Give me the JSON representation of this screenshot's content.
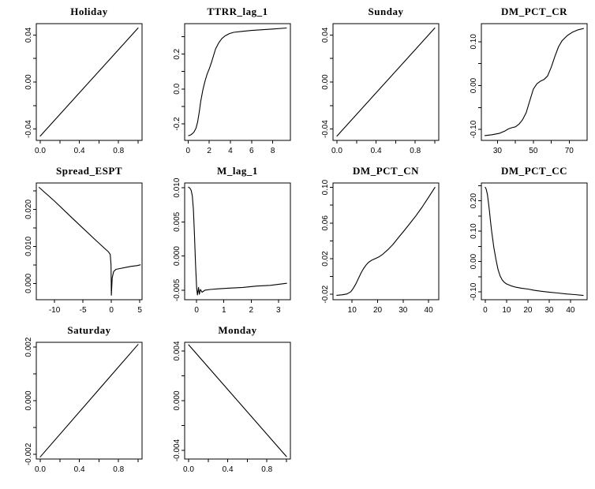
{
  "page": {
    "background": "#ffffff",
    "text_color": "#000000",
    "line_color": "#000000"
  },
  "chart_data": [
    {
      "type": "line",
      "title": "Holiday",
      "xlim": [
        -0.04,
        1.04
      ],
      "ylim": [
        -0.0497,
        0.0497
      ],
      "xticks": [
        {
          "v": 0.0,
          "label": "0.0"
        },
        {
          "v": 0.2,
          "label": ""
        },
        {
          "v": 0.4,
          "label": "0.4"
        },
        {
          "v": 0.6,
          "label": ""
        },
        {
          "v": 0.8,
          "label": "0.8"
        },
        {
          "v": 1.0,
          "label": ""
        }
      ],
      "yticks": [
        {
          "v": -0.04,
          "label": "-0.04"
        },
        {
          "v": -0.02,
          "label": ""
        },
        {
          "v": 0.0,
          "label": "0.00"
        },
        {
          "v": 0.02,
          "label": ""
        },
        {
          "v": 0.04,
          "label": "0.04"
        }
      ],
      "x": [
        0,
        1
      ],
      "y": [
        -0.046,
        0.046
      ]
    },
    {
      "type": "line",
      "title": "TTRR_lag_1",
      "xlim": [
        -0.32,
        9.67
      ],
      "ylim": [
        -0.295,
        0.375
      ],
      "xticks": [
        {
          "v": 0,
          "label": "0"
        },
        {
          "v": 2,
          "label": "2"
        },
        {
          "v": 4,
          "label": "4"
        },
        {
          "v": 6,
          "label": "6"
        },
        {
          "v": 8,
          "label": "8"
        }
      ],
      "yticks": [
        {
          "v": -0.2,
          "label": "-0.2"
        },
        {
          "v": -0.1,
          "label": ""
        },
        {
          "v": 0.0,
          "label": "0.0"
        },
        {
          "v": 0.1,
          "label": ""
        },
        {
          "v": 0.2,
          "label": "0.2"
        },
        {
          "v": 0.3,
          "label": ""
        }
      ],
      "x": [
        0.05,
        0.3,
        0.55,
        0.75,
        0.9,
        1.05,
        1.2,
        1.4,
        1.6,
        1.8,
        2.0,
        2.2,
        2.4,
        2.6,
        2.9,
        3.2,
        3.5,
        3.9,
        4.3,
        5,
        6,
        7,
        8,
        9.3
      ],
      "y": [
        -0.268,
        -0.262,
        -0.248,
        -0.225,
        -0.19,
        -0.135,
        -0.07,
        -0.005,
        0.045,
        0.085,
        0.115,
        0.15,
        0.19,
        0.23,
        0.265,
        0.29,
        0.305,
        0.318,
        0.325,
        0.33,
        0.336,
        0.34,
        0.344,
        0.35
      ]
    },
    {
      "type": "line",
      "title": "Sunday",
      "xlim": [
        -0.04,
        1.04
      ],
      "ylim": [
        -0.0497,
        0.0497
      ],
      "xticks": [
        {
          "v": 0.0,
          "label": "0.0"
        },
        {
          "v": 0.2,
          "label": ""
        },
        {
          "v": 0.4,
          "label": "0.4"
        },
        {
          "v": 0.6,
          "label": ""
        },
        {
          "v": 0.8,
          "label": "0.8"
        },
        {
          "v": 1.0,
          "label": ""
        }
      ],
      "yticks": [
        {
          "v": -0.04,
          "label": "-0.04"
        },
        {
          "v": -0.02,
          "label": ""
        },
        {
          "v": 0.0,
          "label": "0.00"
        },
        {
          "v": 0.02,
          "label": ""
        },
        {
          "v": 0.04,
          "label": "0.04"
        }
      ],
      "x": [
        0,
        1
      ],
      "y": [
        -0.046,
        0.046
      ]
    },
    {
      "type": "line",
      "title": "DM_PCT_CR",
      "xlim": [
        21,
        80
      ],
      "ylim": [
        -0.125,
        0.141
      ],
      "xticks": [
        {
          "v": 30,
          "label": "30"
        },
        {
          "v": 40,
          "label": ""
        },
        {
          "v": 50,
          "label": "50"
        },
        {
          "v": 60,
          "label": ""
        },
        {
          "v": 70,
          "label": "70"
        }
      ],
      "yticks": [
        {
          "v": -0.1,
          "label": "-0.10"
        },
        {
          "v": -0.05,
          "label": ""
        },
        {
          "v": 0.0,
          "label": "0.00"
        },
        {
          "v": 0.05,
          "label": ""
        },
        {
          "v": 0.1,
          "label": "0.10"
        }
      ],
      "x": [
        23,
        27,
        31,
        34,
        36,
        38,
        40,
        42,
        44,
        46,
        48,
        50,
        52,
        54,
        56,
        58,
        60,
        62,
        64,
        66,
        69,
        72,
        75,
        78
      ],
      "y": [
        -0.114,
        -0.112,
        -0.109,
        -0.104,
        -0.099,
        -0.096,
        -0.094,
        -0.088,
        -0.078,
        -0.062,
        -0.035,
        -0.008,
        0.004,
        0.01,
        0.014,
        0.022,
        0.042,
        0.066,
        0.088,
        0.102,
        0.114,
        0.122,
        0.127,
        0.13
      ]
    },
    {
      "type": "line",
      "title": "Spread_ESPT",
      "xlim": [
        -13.2,
        5.4
      ],
      "ylim": [
        -0.0044,
        0.0271
      ],
      "xticks": [
        {
          "v": -10,
          "label": "-10"
        },
        {
          "v": -5,
          "label": "-5"
        },
        {
          "v": 0,
          "label": "0"
        },
        {
          "v": 5,
          "label": "5"
        }
      ],
      "yticks": [
        {
          "v": 0.0,
          "label": "0.000"
        },
        {
          "v": 0.005,
          "label": ""
        },
        {
          "v": 0.01,
          "label": "0.010"
        },
        {
          "v": 0.015,
          "label": ""
        },
        {
          "v": 0.02,
          "label": "0.020"
        },
        {
          "v": 0.025,
          "label": ""
        }
      ],
      "x": [
        -12.7,
        -10,
        -7,
        -5,
        -3,
        -2,
        -1,
        -0.5,
        -0.2,
        -0.05,
        0,
        0.15,
        0.4,
        0.8,
        1.5,
        2.5,
        3.5,
        4.5,
        5.1
      ],
      "y": [
        0.0259,
        0.0222,
        0.0178,
        0.0149,
        0.012,
        0.0106,
        0.0092,
        0.0085,
        0.0078,
        0.005,
        -0.0032,
        0.0015,
        0.0032,
        0.0038,
        0.004,
        0.0043,
        0.0046,
        0.0048,
        0.005
      ]
    },
    {
      "type": "line",
      "title": "M_lag_1",
      "xlim": [
        -0.44,
        3.44
      ],
      "ylim": [
        -0.0064,
        0.0107
      ],
      "xticks": [
        {
          "v": 0,
          "label": "0"
        },
        {
          "v": 1,
          "label": "1"
        },
        {
          "v": 2,
          "label": "2"
        },
        {
          "v": 3,
          "label": "3"
        }
      ],
      "yticks": [
        {
          "v": -0.005,
          "label": "-0.005"
        },
        {
          "v": 0.0,
          "label": "0.000"
        },
        {
          "v": 0.005,
          "label": "0.005"
        },
        {
          "v": 0.01,
          "label": "0.010"
        }
      ],
      "x": [
        -0.3,
        -0.27,
        -0.24,
        -0.2,
        -0.16,
        -0.12,
        -0.08,
        -0.04,
        0,
        0.03,
        0.07,
        0.1,
        0.14,
        0.2,
        0.3,
        0.5,
        0.8,
        1.2,
        1.7,
        2.2,
        2.7,
        3.1,
        3.3
      ],
      "y": [
        0.0101,
        0.01,
        0.0099,
        0.0096,
        0.0088,
        0.0068,
        0.0032,
        -0.0012,
        -0.0047,
        -0.0057,
        -0.0046,
        -0.0056,
        -0.0049,
        -0.0053,
        -0.005,
        -0.0049,
        -0.0048,
        -0.0047,
        -0.0046,
        -0.0044,
        -0.0043,
        -0.0041,
        -0.004
      ]
    },
    {
      "type": "line",
      "title": "DM_PCT_CN",
      "xlim": [
        2.5,
        44
      ],
      "ylim": [
        -0.026,
        0.105
      ],
      "xticks": [
        {
          "v": 10,
          "label": "10"
        },
        {
          "v": 20,
          "label": "20"
        },
        {
          "v": 30,
          "label": "30"
        },
        {
          "v": 40,
          "label": "40"
        }
      ],
      "yticks": [
        {
          "v": -0.02,
          "label": "-0.02"
        },
        {
          "v": 0.0,
          "label": ""
        },
        {
          "v": 0.02,
          "label": "0.02"
        },
        {
          "v": 0.04,
          "label": ""
        },
        {
          "v": 0.06,
          "label": "0.06"
        },
        {
          "v": 0.08,
          "label": ""
        },
        {
          "v": 0.1,
          "label": "0.10"
        }
      ],
      "x": [
        4,
        6,
        8,
        9.5,
        10.5,
        11.5,
        12.5,
        13.5,
        14.5,
        15.5,
        16.5,
        17.5,
        19,
        20.5,
        22,
        24,
        26,
        28,
        30,
        32.5,
        35,
        37.5,
        40,
        42.5
      ],
      "y": [
        -0.021,
        -0.0205,
        -0.0195,
        -0.017,
        -0.013,
        -0.008,
        -0.002,
        0.004,
        0.009,
        0.013,
        0.016,
        0.018,
        0.02,
        0.022,
        0.025,
        0.03,
        0.036,
        0.043,
        0.05,
        0.059,
        0.068,
        0.078,
        0.089,
        0.1
      ]
    },
    {
      "type": "line",
      "title": "DM_PCT_CC",
      "xlim": [
        -1.8,
        47.8
      ],
      "ylim": [
        -0.126,
        0.259
      ],
      "xticks": [
        {
          "v": 0,
          "label": "0"
        },
        {
          "v": 10,
          "label": "10"
        },
        {
          "v": 20,
          "label": "20"
        },
        {
          "v": 30,
          "label": "30"
        },
        {
          "v": 40,
          "label": "40"
        }
      ],
      "yticks": [
        {
          "v": -0.1,
          "label": "-0.10"
        },
        {
          "v": -0.05,
          "label": ""
        },
        {
          "v": 0.0,
          "label": "0.00"
        },
        {
          "v": 0.05,
          "label": ""
        },
        {
          "v": 0.1,
          "label": "0.10"
        },
        {
          "v": 0.15,
          "label": ""
        },
        {
          "v": 0.2,
          "label": "0.20"
        },
        {
          "v": 0.25,
          "label": ""
        }
      ],
      "x": [
        0,
        0.5,
        1,
        1.5,
        2,
        2.5,
        3,
        4,
        5,
        6,
        7,
        8,
        9,
        10,
        12,
        14,
        17,
        20,
        23,
        26,
        30,
        34,
        38,
        42,
        46
      ],
      "y": [
        0.245,
        0.238,
        0.222,
        0.196,
        0.165,
        0.132,
        0.1,
        0.048,
        0.008,
        -0.026,
        -0.048,
        -0.061,
        -0.069,
        -0.074,
        -0.08,
        -0.084,
        -0.088,
        -0.091,
        -0.095,
        -0.098,
        -0.101,
        -0.104,
        -0.107,
        -0.109,
        -0.112
      ]
    },
    {
      "type": "line",
      "title": "Saturday",
      "xlim": [
        -0.04,
        1.04
      ],
      "ylim": [
        -0.00218,
        0.00218
      ],
      "xticks": [
        {
          "v": 0.0,
          "label": "0.0"
        },
        {
          "v": 0.2,
          "label": ""
        },
        {
          "v": 0.4,
          "label": "0.4"
        },
        {
          "v": 0.6,
          "label": ""
        },
        {
          "v": 0.8,
          "label": "0.8"
        },
        {
          "v": 1.0,
          "label": ""
        }
      ],
      "yticks": [
        {
          "v": -0.002,
          "label": "-0.002"
        },
        {
          "v": -0.001,
          "label": ""
        },
        {
          "v": 0.0,
          "label": "0.000"
        },
        {
          "v": 0.001,
          "label": ""
        },
        {
          "v": 0.002,
          "label": "0.002"
        }
      ],
      "x": [
        0,
        1
      ],
      "y": [
        -0.0021,
        0.0021
      ]
    },
    {
      "type": "line",
      "title": "Monday",
      "xlim": [
        -0.04,
        1.04
      ],
      "ylim": [
        -0.0047,
        0.0047
      ],
      "xticks": [
        {
          "v": 0.0,
          "label": "0.0"
        },
        {
          "v": 0.2,
          "label": ""
        },
        {
          "v": 0.4,
          "label": "0.4"
        },
        {
          "v": 0.6,
          "label": ""
        },
        {
          "v": 0.8,
          "label": "0.8"
        },
        {
          "v": 1.0,
          "label": ""
        }
      ],
      "yticks": [
        {
          "v": -0.004,
          "label": "-0.004"
        },
        {
          "v": -0.002,
          "label": ""
        },
        {
          "v": 0.0,
          "label": "0.000"
        },
        {
          "v": 0.002,
          "label": ""
        },
        {
          "v": 0.004,
          "label": "0.004"
        }
      ],
      "x": [
        0,
        1
      ],
      "y": [
        0.0045,
        -0.0045
      ]
    }
  ]
}
